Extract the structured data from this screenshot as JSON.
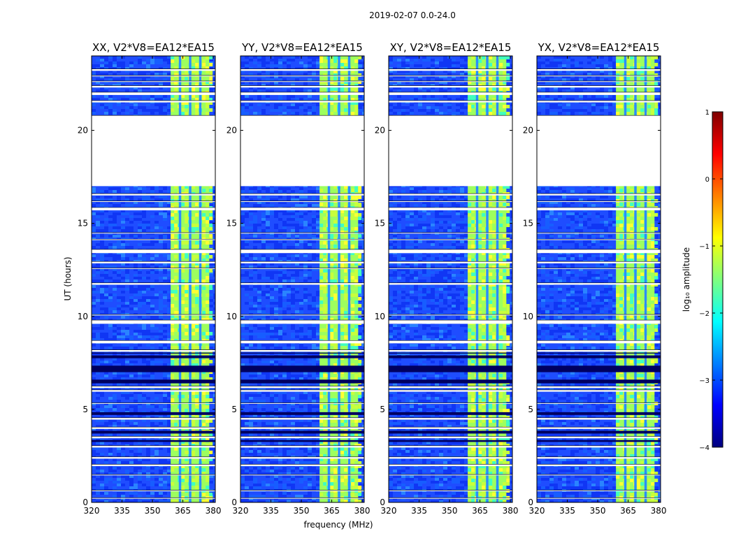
{
  "chart_data": {
    "type": "heatmap",
    "suptitle": "2019-02-07 0.0-24.0",
    "xlabel": "frequency (MHz)",
    "ylabel": "UT (hours)",
    "xlim": [
      320,
      381
    ],
    "ylim": [
      0,
      24
    ],
    "xticks": [
      320,
      335,
      350,
      365,
      380
    ],
    "yticks": [
      0,
      5,
      10,
      15,
      20
    ],
    "panels": [
      {
        "title": "XX, V2*V8=EA12*EA15"
      },
      {
        "title": "YY, V2*V8=EA12*EA15"
      },
      {
        "title": "XY, V2*V8=EA12*EA15"
      },
      {
        "title": "YX, V2*V8=EA12*EA15"
      }
    ],
    "bright_band_mhz": [
      359,
      378
    ],
    "bright_stripe_gaps_mhz": [
      363,
      368,
      373
    ],
    "flagged_ut_ranges": [
      [
        17.0,
        20.8
      ],
      [
        23.2,
        23.3
      ],
      [
        22.9,
        22.95
      ],
      [
        22.6,
        22.65
      ],
      [
        22.3,
        22.4
      ],
      [
        21.9,
        22.05
      ],
      [
        21.5,
        21.6
      ],
      [
        16.5,
        16.6
      ],
      [
        16.15,
        16.2
      ],
      [
        15.7,
        15.85
      ],
      [
        14.45,
        14.5
      ],
      [
        14.1,
        14.15
      ],
      [
        13.4,
        13.6
      ],
      [
        12.85,
        12.95
      ],
      [
        12.55,
        12.6
      ],
      [
        11.7,
        11.8
      ],
      [
        10.05,
        10.1
      ],
      [
        9.6,
        9.8
      ],
      [
        8.55,
        8.7
      ],
      [
        8.1,
        8.2
      ],
      [
        6.15,
        6.25
      ],
      [
        5.95,
        6.05
      ],
      [
        5.3,
        5.35
      ],
      [
        4.45,
        4.55
      ],
      [
        3.95,
        4.05
      ],
      [
        3.45,
        3.55
      ],
      [
        2.95,
        3.05
      ],
      [
        2.35,
        2.45
      ],
      [
        1.95,
        2.05
      ],
      [
        1.45,
        1.5
      ],
      [
        0.6,
        0.65
      ],
      [
        0.2,
        0.25
      ]
    ],
    "dark_ut_ranges": [
      [
        7.0,
        7.35
      ],
      [
        7.75,
        7.9
      ],
      [
        6.4,
        6.6
      ],
      [
        4.7,
        4.85
      ],
      [
        3.7,
        3.85
      ],
      [
        3.25,
        3.35
      ],
      [
        8.0,
        8.05
      ]
    ],
    "colorbar": {
      "label": "log₁₀ amplitude",
      "range": [
        -4,
        1
      ],
      "ticks": [
        {
          "value": 1,
          "label": "1"
        },
        {
          "value": 0,
          "label": "0"
        },
        {
          "value": -1,
          "label": "−1"
        },
        {
          "value": -2,
          "label": "−2"
        },
        {
          "value": -3,
          "label": "−3"
        },
        {
          "value": -4,
          "label": "−4"
        }
      ],
      "colors": [
        "#00007f",
        "#0000ff",
        "#007fff",
        "#00ffff",
        "#7fff7f",
        "#ffff00",
        "#ff7f00",
        "#ff0000",
        "#7f0000"
      ]
    }
  }
}
